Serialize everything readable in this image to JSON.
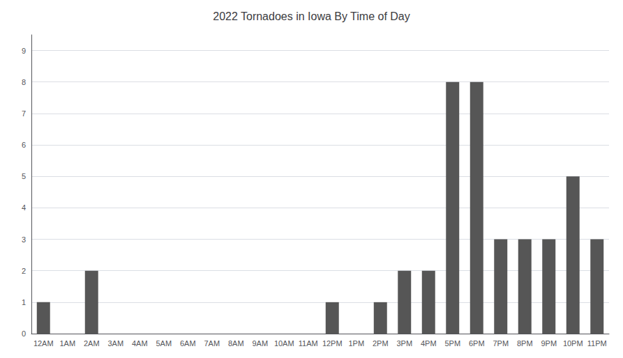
{
  "chart_data": {
    "type": "bar",
    "title": "2022 Tornadoes in Iowa By Time of Day",
    "categories": [
      "12AM",
      "1AM",
      "2AM",
      "3AM",
      "4AM",
      "5AM",
      "6AM",
      "7AM",
      "8AM",
      "9AM",
      "10AM",
      "11AM",
      "12PM",
      "1PM",
      "2PM",
      "3PM",
      "4PM",
      "5PM",
      "6PM",
      "7PM",
      "8PM",
      "9PM",
      "10PM",
      "11PM"
    ],
    "values": [
      1,
      0,
      2,
      0,
      0,
      0,
      0,
      0,
      0,
      0,
      0,
      0,
      1,
      0,
      1,
      2,
      2,
      8,
      8,
      3,
      3,
      3,
      5,
      3
    ],
    "color": "#565656",
    "ylim": [
      0,
      9.5
    ],
    "yticks": [
      0,
      1,
      2,
      3,
      4,
      5,
      6,
      7,
      8,
      9
    ],
    "grid": true
  }
}
